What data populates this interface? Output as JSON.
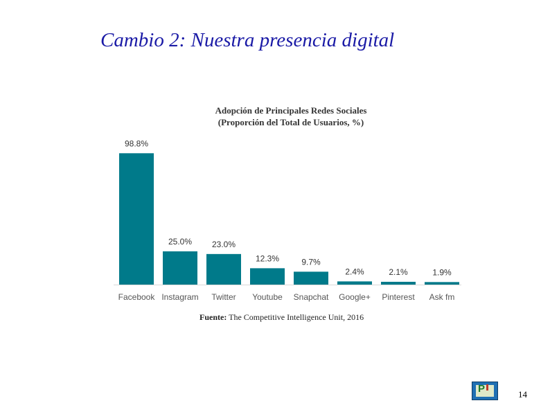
{
  "slide": {
    "title": "Cambio 2: Nuestra presencia digital",
    "page_number": "14"
  },
  "chart_source": {
    "label": "Fuente:",
    "text": "The Competitive Intelligence Unit, 2016"
  },
  "chart_data": {
    "type": "bar",
    "title": "Adopción de Principales Redes Sociales",
    "subtitle": "(Proporción del Total de Usuarios, %)",
    "categories": [
      "Facebook",
      "Instagram",
      "Twitter",
      "Youtube",
      "Snapchat",
      "Google+",
      "Pinterest",
      "Ask fm"
    ],
    "values": [
      98.8,
      25.0,
      23.0,
      12.3,
      9.7,
      2.4,
      2.1,
      1.9
    ],
    "value_labels": [
      "98.8%",
      "25.0%",
      "23.0%",
      "12.3%",
      "9.7%",
      "2.4%",
      "2.1%",
      "1.9%"
    ],
    "ylim": [
      0,
      100
    ],
    "grid": false,
    "bar_color": "#007a8a"
  },
  "logo": {
    "icon": "pi-logo-icon"
  }
}
